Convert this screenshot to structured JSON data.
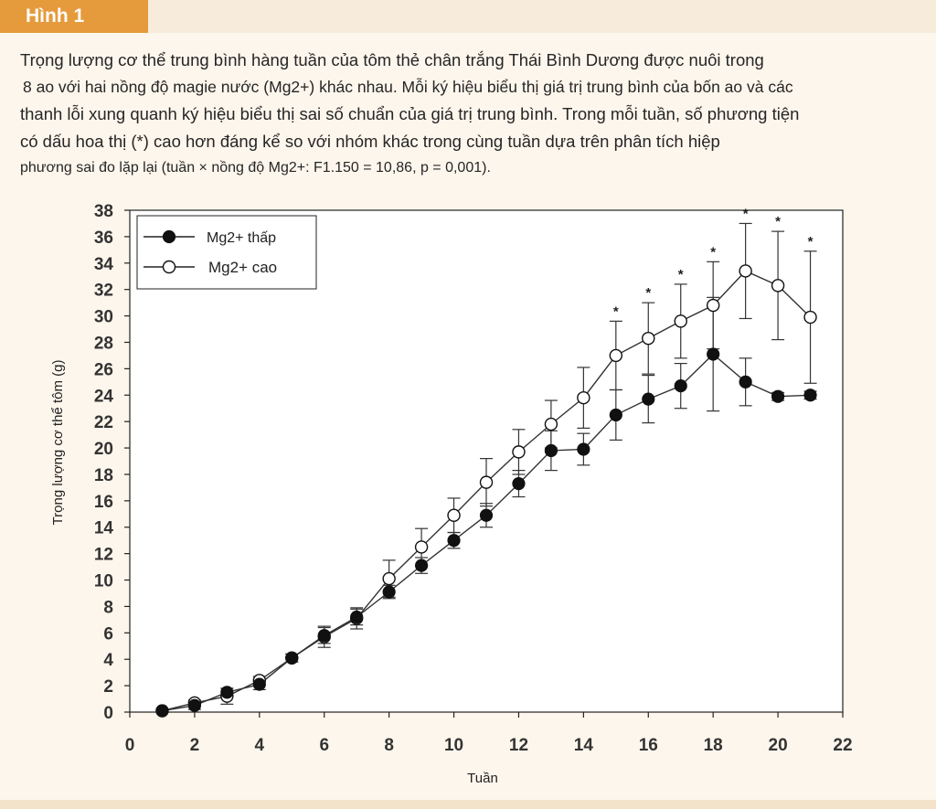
{
  "figure_label": "Hình 1",
  "caption_lines": [
    "Trọng lượng cơ thể trung bình hàng tuần của tôm thẻ chân trắng Thái Bình Dương được nuôi trong",
    "8 ao với hai nồng độ magie nước (Mg2+) khác nhau. Mỗi ký hiệu biểu thị giá trị trung bình của bốn ao và các",
    "thanh lỗi xung quanh ký hiệu biểu thị sai số chuẩn của giá trị trung bình. Trong mỗi tuần, số phương tiện",
    "có dấu hoa thị (*) cao hơn đáng kể so với nhóm khác trong cùng tuần dựa trên phân tích hiệp",
    "phương sai đo lặp lại (tuần × nồng độ Mg2+: F1.150 = 10,86, p = 0,001)."
  ],
  "chart_data": {
    "type": "line",
    "xlabel": "Tuần",
    "ylabel": "Trọng lượng cơ thể tôm (g)",
    "xlim": [
      0,
      22
    ],
    "ylim": [
      0,
      38
    ],
    "xticks": [
      0,
      2,
      4,
      6,
      8,
      10,
      12,
      14,
      16,
      18,
      20,
      22
    ],
    "yticks": [
      0,
      2,
      4,
      6,
      8,
      10,
      12,
      14,
      16,
      18,
      20,
      22,
      24,
      26,
      28,
      30,
      32,
      34,
      36,
      38
    ],
    "grid": false,
    "legend_position": "top-left",
    "x": [
      1,
      2,
      3,
      4,
      5,
      6,
      7,
      8,
      9,
      10,
      11,
      12,
      13,
      14,
      15,
      16,
      17,
      18,
      19,
      20,
      21
    ],
    "series": [
      {
        "name": "Mg2+ thấp",
        "marker": "filled-circle",
        "color": "#111111",
        "values": [
          0.1,
          0.5,
          1.5,
          2.1,
          4.1,
          5.8,
          7.2,
          9.1,
          11.1,
          13.0,
          14.9,
          17.3,
          19.8,
          19.9,
          22.5,
          23.7,
          24.7,
          27.1,
          25.0,
          23.9,
          24.0
        ],
        "errors": [
          0.1,
          0.3,
          0.3,
          0.4,
          0.3,
          0.6,
          0.6,
          0.5,
          0.6,
          0.6,
          0.9,
          1.0,
          1.5,
          1.2,
          1.9,
          1.8,
          1.7,
          4.3,
          1.8,
          0.3,
          0.3
        ]
      },
      {
        "name": "Mg2+ cao",
        "marker": "open-circle",
        "color": "#111111",
        "values": [
          0.1,
          0.7,
          1.2,
          2.4,
          4.1,
          5.7,
          7.1,
          10.1,
          12.5,
          14.9,
          17.4,
          19.7,
          21.8,
          23.8,
          27.0,
          28.3,
          29.6,
          30.8,
          33.4,
          32.3,
          29.9
        ],
        "errors": [
          0.1,
          0.2,
          0.6,
          0.3,
          0.3,
          0.8,
          0.8,
          1.4,
          1.4,
          1.3,
          1.8,
          1.7,
          1.8,
          2.3,
          2.6,
          2.7,
          2.8,
          3.3,
          3.6,
          4.1,
          5.0
        ]
      }
    ],
    "significance": {
      "symbol": "*",
      "weeks": [
        15,
        16,
        17,
        18,
        19,
        20,
        21
      ]
    }
  }
}
